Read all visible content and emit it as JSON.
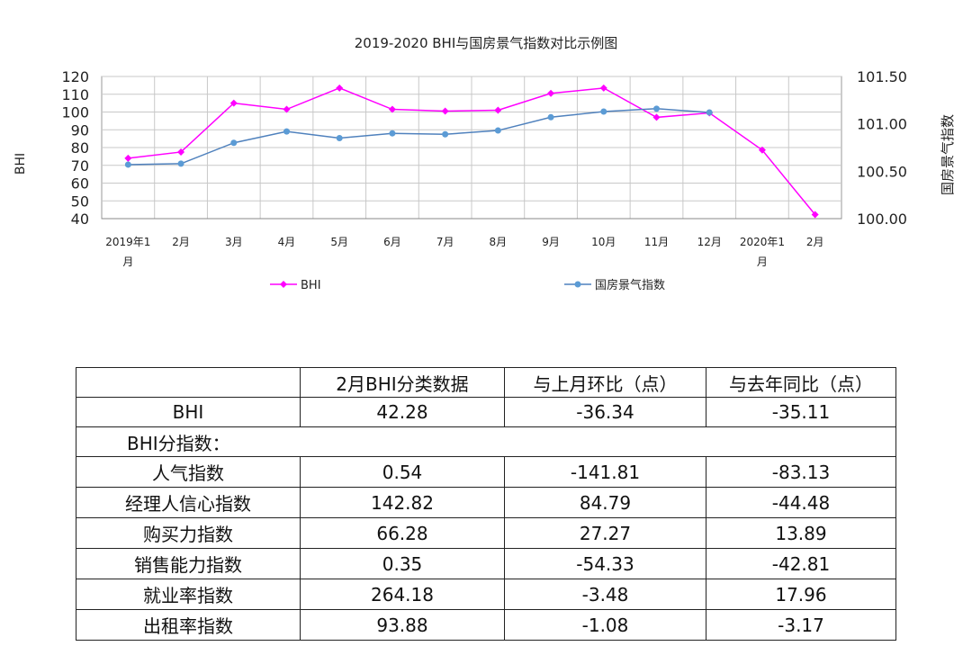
{
  "chart_data": {
    "type": "line",
    "title": "2019-2020 BHI与国房景气指数对比示例图",
    "ylabel": "BHI",
    "y2label": "国房景气指数",
    "categories": [
      "2019年1月",
      "2月",
      "3月",
      "4月",
      "5月",
      "6月",
      "7月",
      "8月",
      "9月",
      "10月",
      "11月",
      "12月",
      "2020年1月",
      "2月"
    ],
    "ylim": [
      40,
      120
    ],
    "yticks": [
      "40",
      "50",
      "60",
      "70",
      "80",
      "90",
      "100",
      "110",
      "120"
    ],
    "y2lim": [
      100.0,
      101.5
    ],
    "y2ticks": [
      "100.00",
      "100.50",
      "101.00",
      "101.50"
    ],
    "grid": true,
    "legend_placement": "bottom",
    "series": [
      {
        "name": "BHI",
        "axis": "left",
        "color": "#ff00ff",
        "marker": "diamond",
        "values": [
          74,
          77.5,
          105,
          101.5,
          113.5,
          101.5,
          100.5,
          101,
          110.5,
          113.5,
          97,
          99.5,
          78.6,
          42.28
        ]
      },
      {
        "name": "国房景气指数",
        "axis": "right",
        "color": "#4f81bd",
        "marker": "circle",
        "values": [
          100.57,
          100.58,
          100.8,
          100.92,
          100.85,
          100.9,
          100.89,
          100.93,
          101.07,
          101.13,
          101.16,
          101.12,
          null,
          null
        ]
      }
    ]
  },
  "table": {
    "header": [
      "",
      "2月BHI分类数据",
      "与上月环比（点）",
      "与去年同比（点）"
    ],
    "bhi_row": [
      "BHI",
      "42.28",
      "-36.34",
      "-35.11"
    ],
    "sub_title": "BHI分指数：",
    "rows": [
      [
        "人气指数",
        "0.54",
        "-141.81",
        "-83.13"
      ],
      [
        "经理人信心指数",
        "142.82",
        "84.79",
        "-44.48"
      ],
      [
        "购买力指数",
        "66.28",
        "27.27",
        "13.89"
      ],
      [
        "销售能力指数",
        "0.35",
        "-54.33",
        "-42.81"
      ],
      [
        "就业率指数",
        "264.18",
        "-3.48",
        "17.96"
      ],
      [
        "出租率指数",
        "93.88",
        "-1.08",
        "-3.17"
      ]
    ]
  }
}
